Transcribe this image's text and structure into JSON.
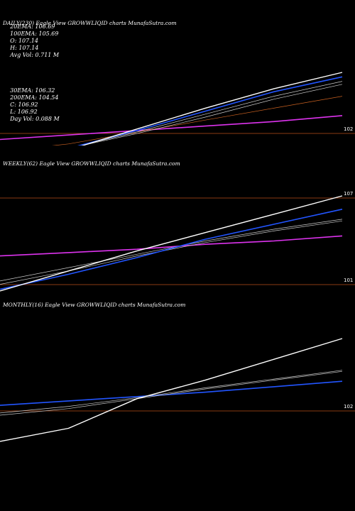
{
  "stats": {
    "ema20": "20EMA: 106.69",
    "ema100": "100EMA: 105.69",
    "open": "O: 107.14",
    "high": "H: 107.14",
    "avg_vol": "Avg Vol: 0.711 M",
    "ema30": "30EMA: 106.32",
    "ema200": "200EMA: 104.54",
    "close": "C: 106.92",
    "low": "L: 106.92",
    "day_vol": "Day Vol: 0.088 M"
  },
  "colors": {
    "background": "#000000",
    "price": "#ffffff",
    "ema_blue": "#2255ff",
    "ema_light": "#cccccc",
    "ema_orange": "#c86020",
    "ema_magenta": "#dd33ee",
    "hline": "#8a3a12"
  },
  "chart_data": [
    {
      "type": "line",
      "title": "DAILY(230) Eagle   View  GROWWLIQID charts MunafaSutra.com",
      "yticks": [
        "102"
      ],
      "x": [
        0,
        0.2,
        0.4,
        0.6,
        0.8,
        1.0
      ],
      "series": [
        {
          "values": [
            101.1,
            101.9,
            103.3,
            104.7,
            106.0,
            107.1
          ]
        },
        {
          "values": [
            101.2,
            102.0,
            103.2,
            104.5,
            105.8,
            106.8
          ]
        },
        {
          "values": [
            101.5,
            102.0,
            103.1,
            104.3,
            105.5,
            106.5
          ]
        },
        {
          "values": [
            101.6,
            102.0,
            103.0,
            104.1,
            105.3,
            106.3
          ]
        },
        {
          "values": [
            101.8,
            102.3,
            103.1,
            103.9,
            104.7,
            105.5
          ]
        },
        {
          "values": [
            102.6,
            102.9,
            103.2,
            103.5,
            103.8,
            104.2
          ]
        }
      ]
    },
    {
      "type": "line",
      "title": "WEEKLY(62) Eagle   View  GROWWLIQID charts MunafaSutra.com",
      "yticks": [
        "107",
        "101"
      ],
      "x": [
        0,
        0.2,
        0.4,
        0.6,
        0.8,
        1.0
      ],
      "series": [
        {
          "values": [
            101.2,
            102.4,
            103.6,
            104.7,
            105.8,
            106.9
          ]
        },
        {
          "values": [
            101.3,
            102.2,
            103.2,
            104.3,
            105.2,
            106.1
          ]
        },
        {
          "values": [
            101.8,
            102.6,
            103.4,
            104.2,
            104.9,
            105.5
          ]
        },
        {
          "values": [
            101.6,
            102.4,
            103.3,
            104.1,
            104.8,
            105.4
          ]
        },
        {
          "values": [
            103.3,
            103.5,
            103.7,
            104.0,
            104.2,
            104.5
          ]
        }
      ]
    },
    {
      "type": "line",
      "title": "MONTHLY(16) Eagle   View  GROWWLIQID charts MunafaSutra.com",
      "yticks": [
        "102"
      ],
      "x": [
        0,
        0.2,
        0.4,
        0.6,
        0.8,
        1.0
      ],
      "series": [
        {
          "values": [
            97.8,
            99.0,
            101.7,
            103.4,
            105.3,
            107.2
          ]
        },
        {
          "values": [
            100.4,
            101.0,
            101.8,
            102.7,
            103.5,
            104.3
          ]
        },
        {
          "values": [
            100.2,
            100.8,
            101.7,
            102.6,
            103.4,
            104.2
          ]
        },
        {
          "values": [
            101.1,
            101.5,
            101.9,
            102.3,
            102.8,
            103.3
          ]
        }
      ]
    }
  ]
}
